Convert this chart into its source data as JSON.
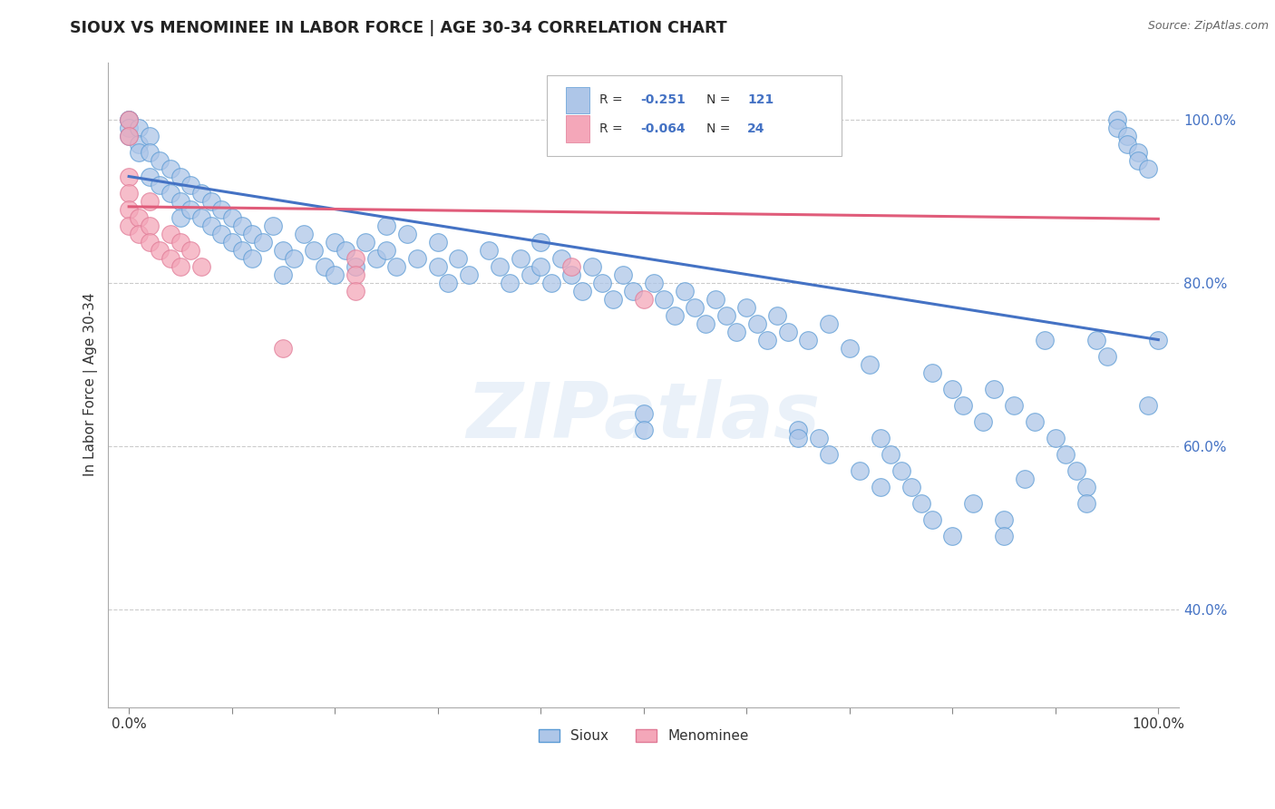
{
  "title": "SIOUX VS MENOMINEE IN LABOR FORCE | AGE 30-34 CORRELATION CHART",
  "source_text": "Source: ZipAtlas.com",
  "ylabel": "In Labor Force | Age 30-34",
  "xlim": [
    -0.02,
    1.02
  ],
  "ylim": [
    0.28,
    1.07
  ],
  "ytick_labels": [
    "40.0%",
    "60.0%",
    "80.0%",
    "100.0%"
  ],
  "ytick_values": [
    0.4,
    0.6,
    0.8,
    1.0
  ],
  "sioux_color": "#aec6e8",
  "sioux_edge_color": "#5b9bd5",
  "menominee_color": "#f4a7b9",
  "menominee_edge_color": "#e07a96",
  "sioux_R": -0.251,
  "sioux_N": 121,
  "menominee_R": -0.064,
  "menominee_N": 24,
  "trend_blue": "#4472c4",
  "trend_pink": "#e05c7a",
  "legend_label_sioux": "Sioux",
  "legend_label_menominee": "Menominee",
  "watermark": "ZIPatlas",
  "background_color": "#ffffff",
  "grid_color": "#cccccc",
  "sioux_points": [
    [
      0.0,
      1.0
    ],
    [
      0.0,
      1.0
    ],
    [
      0.0,
      0.99
    ],
    [
      0.0,
      0.98
    ],
    [
      0.01,
      0.99
    ],
    [
      0.01,
      0.97
    ],
    [
      0.01,
      0.96
    ],
    [
      0.02,
      0.98
    ],
    [
      0.02,
      0.96
    ],
    [
      0.02,
      0.93
    ],
    [
      0.03,
      0.95
    ],
    [
      0.03,
      0.92
    ],
    [
      0.04,
      0.94
    ],
    [
      0.04,
      0.91
    ],
    [
      0.05,
      0.93
    ],
    [
      0.05,
      0.9
    ],
    [
      0.05,
      0.88
    ],
    [
      0.06,
      0.92
    ],
    [
      0.06,
      0.89
    ],
    [
      0.07,
      0.91
    ],
    [
      0.07,
      0.88
    ],
    [
      0.08,
      0.9
    ],
    [
      0.08,
      0.87
    ],
    [
      0.09,
      0.89
    ],
    [
      0.09,
      0.86
    ],
    [
      0.1,
      0.88
    ],
    [
      0.1,
      0.85
    ],
    [
      0.11,
      0.87
    ],
    [
      0.11,
      0.84
    ],
    [
      0.12,
      0.86
    ],
    [
      0.12,
      0.83
    ],
    [
      0.13,
      0.85
    ],
    [
      0.14,
      0.87
    ],
    [
      0.15,
      0.84
    ],
    [
      0.15,
      0.81
    ],
    [
      0.16,
      0.83
    ],
    [
      0.17,
      0.86
    ],
    [
      0.18,
      0.84
    ],
    [
      0.19,
      0.82
    ],
    [
      0.2,
      0.85
    ],
    [
      0.2,
      0.81
    ],
    [
      0.21,
      0.84
    ],
    [
      0.22,
      0.82
    ],
    [
      0.23,
      0.85
    ],
    [
      0.24,
      0.83
    ],
    [
      0.25,
      0.87
    ],
    [
      0.25,
      0.84
    ],
    [
      0.26,
      0.82
    ],
    [
      0.27,
      0.86
    ],
    [
      0.28,
      0.83
    ],
    [
      0.3,
      0.85
    ],
    [
      0.3,
      0.82
    ],
    [
      0.31,
      0.8
    ],
    [
      0.32,
      0.83
    ],
    [
      0.33,
      0.81
    ],
    [
      0.35,
      0.84
    ],
    [
      0.36,
      0.82
    ],
    [
      0.37,
      0.8
    ],
    [
      0.38,
      0.83
    ],
    [
      0.39,
      0.81
    ],
    [
      0.4,
      0.85
    ],
    [
      0.4,
      0.82
    ],
    [
      0.41,
      0.8
    ],
    [
      0.42,
      0.83
    ],
    [
      0.43,
      0.81
    ],
    [
      0.44,
      0.79
    ],
    [
      0.45,
      0.82
    ],
    [
      0.46,
      0.8
    ],
    [
      0.47,
      0.78
    ],
    [
      0.48,
      0.81
    ],
    [
      0.49,
      0.79
    ],
    [
      0.5,
      0.64
    ],
    [
      0.5,
      0.62
    ],
    [
      0.51,
      0.8
    ],
    [
      0.52,
      0.78
    ],
    [
      0.53,
      0.76
    ],
    [
      0.54,
      0.79
    ],
    [
      0.55,
      0.77
    ],
    [
      0.56,
      0.75
    ],
    [
      0.57,
      0.78
    ],
    [
      0.58,
      0.76
    ],
    [
      0.59,
      0.74
    ],
    [
      0.6,
      0.77
    ],
    [
      0.61,
      0.75
    ],
    [
      0.62,
      0.73
    ],
    [
      0.63,
      0.76
    ],
    [
      0.64,
      0.74
    ],
    [
      0.65,
      0.62
    ],
    [
      0.65,
      0.61
    ],
    [
      0.66,
      0.73
    ],
    [
      0.67,
      0.61
    ],
    [
      0.68,
      0.75
    ],
    [
      0.68,
      0.59
    ],
    [
      0.7,
      0.72
    ],
    [
      0.71,
      0.57
    ],
    [
      0.72,
      0.7
    ],
    [
      0.73,
      0.55
    ],
    [
      0.73,
      0.61
    ],
    [
      0.74,
      0.59
    ],
    [
      0.75,
      0.57
    ],
    [
      0.76,
      0.55
    ],
    [
      0.77,
      0.53
    ],
    [
      0.78,
      0.69
    ],
    [
      0.78,
      0.51
    ],
    [
      0.8,
      0.67
    ],
    [
      0.8,
      0.49
    ],
    [
      0.81,
      0.65
    ],
    [
      0.82,
      0.53
    ],
    [
      0.83,
      0.63
    ],
    [
      0.84,
      0.67
    ],
    [
      0.85,
      0.51
    ],
    [
      0.85,
      0.49
    ],
    [
      0.86,
      0.65
    ],
    [
      0.87,
      0.56
    ],
    [
      0.88,
      0.63
    ],
    [
      0.89,
      0.73
    ],
    [
      0.9,
      0.61
    ],
    [
      0.91,
      0.59
    ],
    [
      0.92,
      0.57
    ],
    [
      0.93,
      0.55
    ],
    [
      0.93,
      0.53
    ],
    [
      0.94,
      0.73
    ],
    [
      0.95,
      0.71
    ],
    [
      0.96,
      1.0
    ],
    [
      0.96,
      0.99
    ],
    [
      0.97,
      0.98
    ],
    [
      0.97,
      0.97
    ],
    [
      0.98,
      0.96
    ],
    [
      0.98,
      0.95
    ],
    [
      0.99,
      0.94
    ],
    [
      0.99,
      0.65
    ],
    [
      1.0,
      0.73
    ]
  ],
  "menominee_points": [
    [
      0.0,
      0.93
    ],
    [
      0.0,
      0.91
    ],
    [
      0.0,
      1.0
    ],
    [
      0.0,
      0.98
    ],
    [
      0.0,
      0.89
    ],
    [
      0.0,
      0.87
    ],
    [
      0.01,
      0.88
    ],
    [
      0.01,
      0.86
    ],
    [
      0.02,
      0.9
    ],
    [
      0.02,
      0.87
    ],
    [
      0.02,
      0.85
    ],
    [
      0.03,
      0.84
    ],
    [
      0.04,
      0.86
    ],
    [
      0.04,
      0.83
    ],
    [
      0.05,
      0.85
    ],
    [
      0.05,
      0.82
    ],
    [
      0.06,
      0.84
    ],
    [
      0.07,
      0.82
    ],
    [
      0.15,
      0.72
    ],
    [
      0.22,
      0.83
    ],
    [
      0.22,
      0.81
    ],
    [
      0.22,
      0.79
    ],
    [
      0.43,
      0.82
    ],
    [
      0.5,
      0.78
    ]
  ],
  "sioux_trend_x": [
    0.0,
    1.0
  ],
  "sioux_trend_y": [
    0.93,
    0.73
  ],
  "menominee_trend_x": [
    0.0,
    1.0
  ],
  "menominee_trend_y": [
    0.893,
    0.878
  ]
}
